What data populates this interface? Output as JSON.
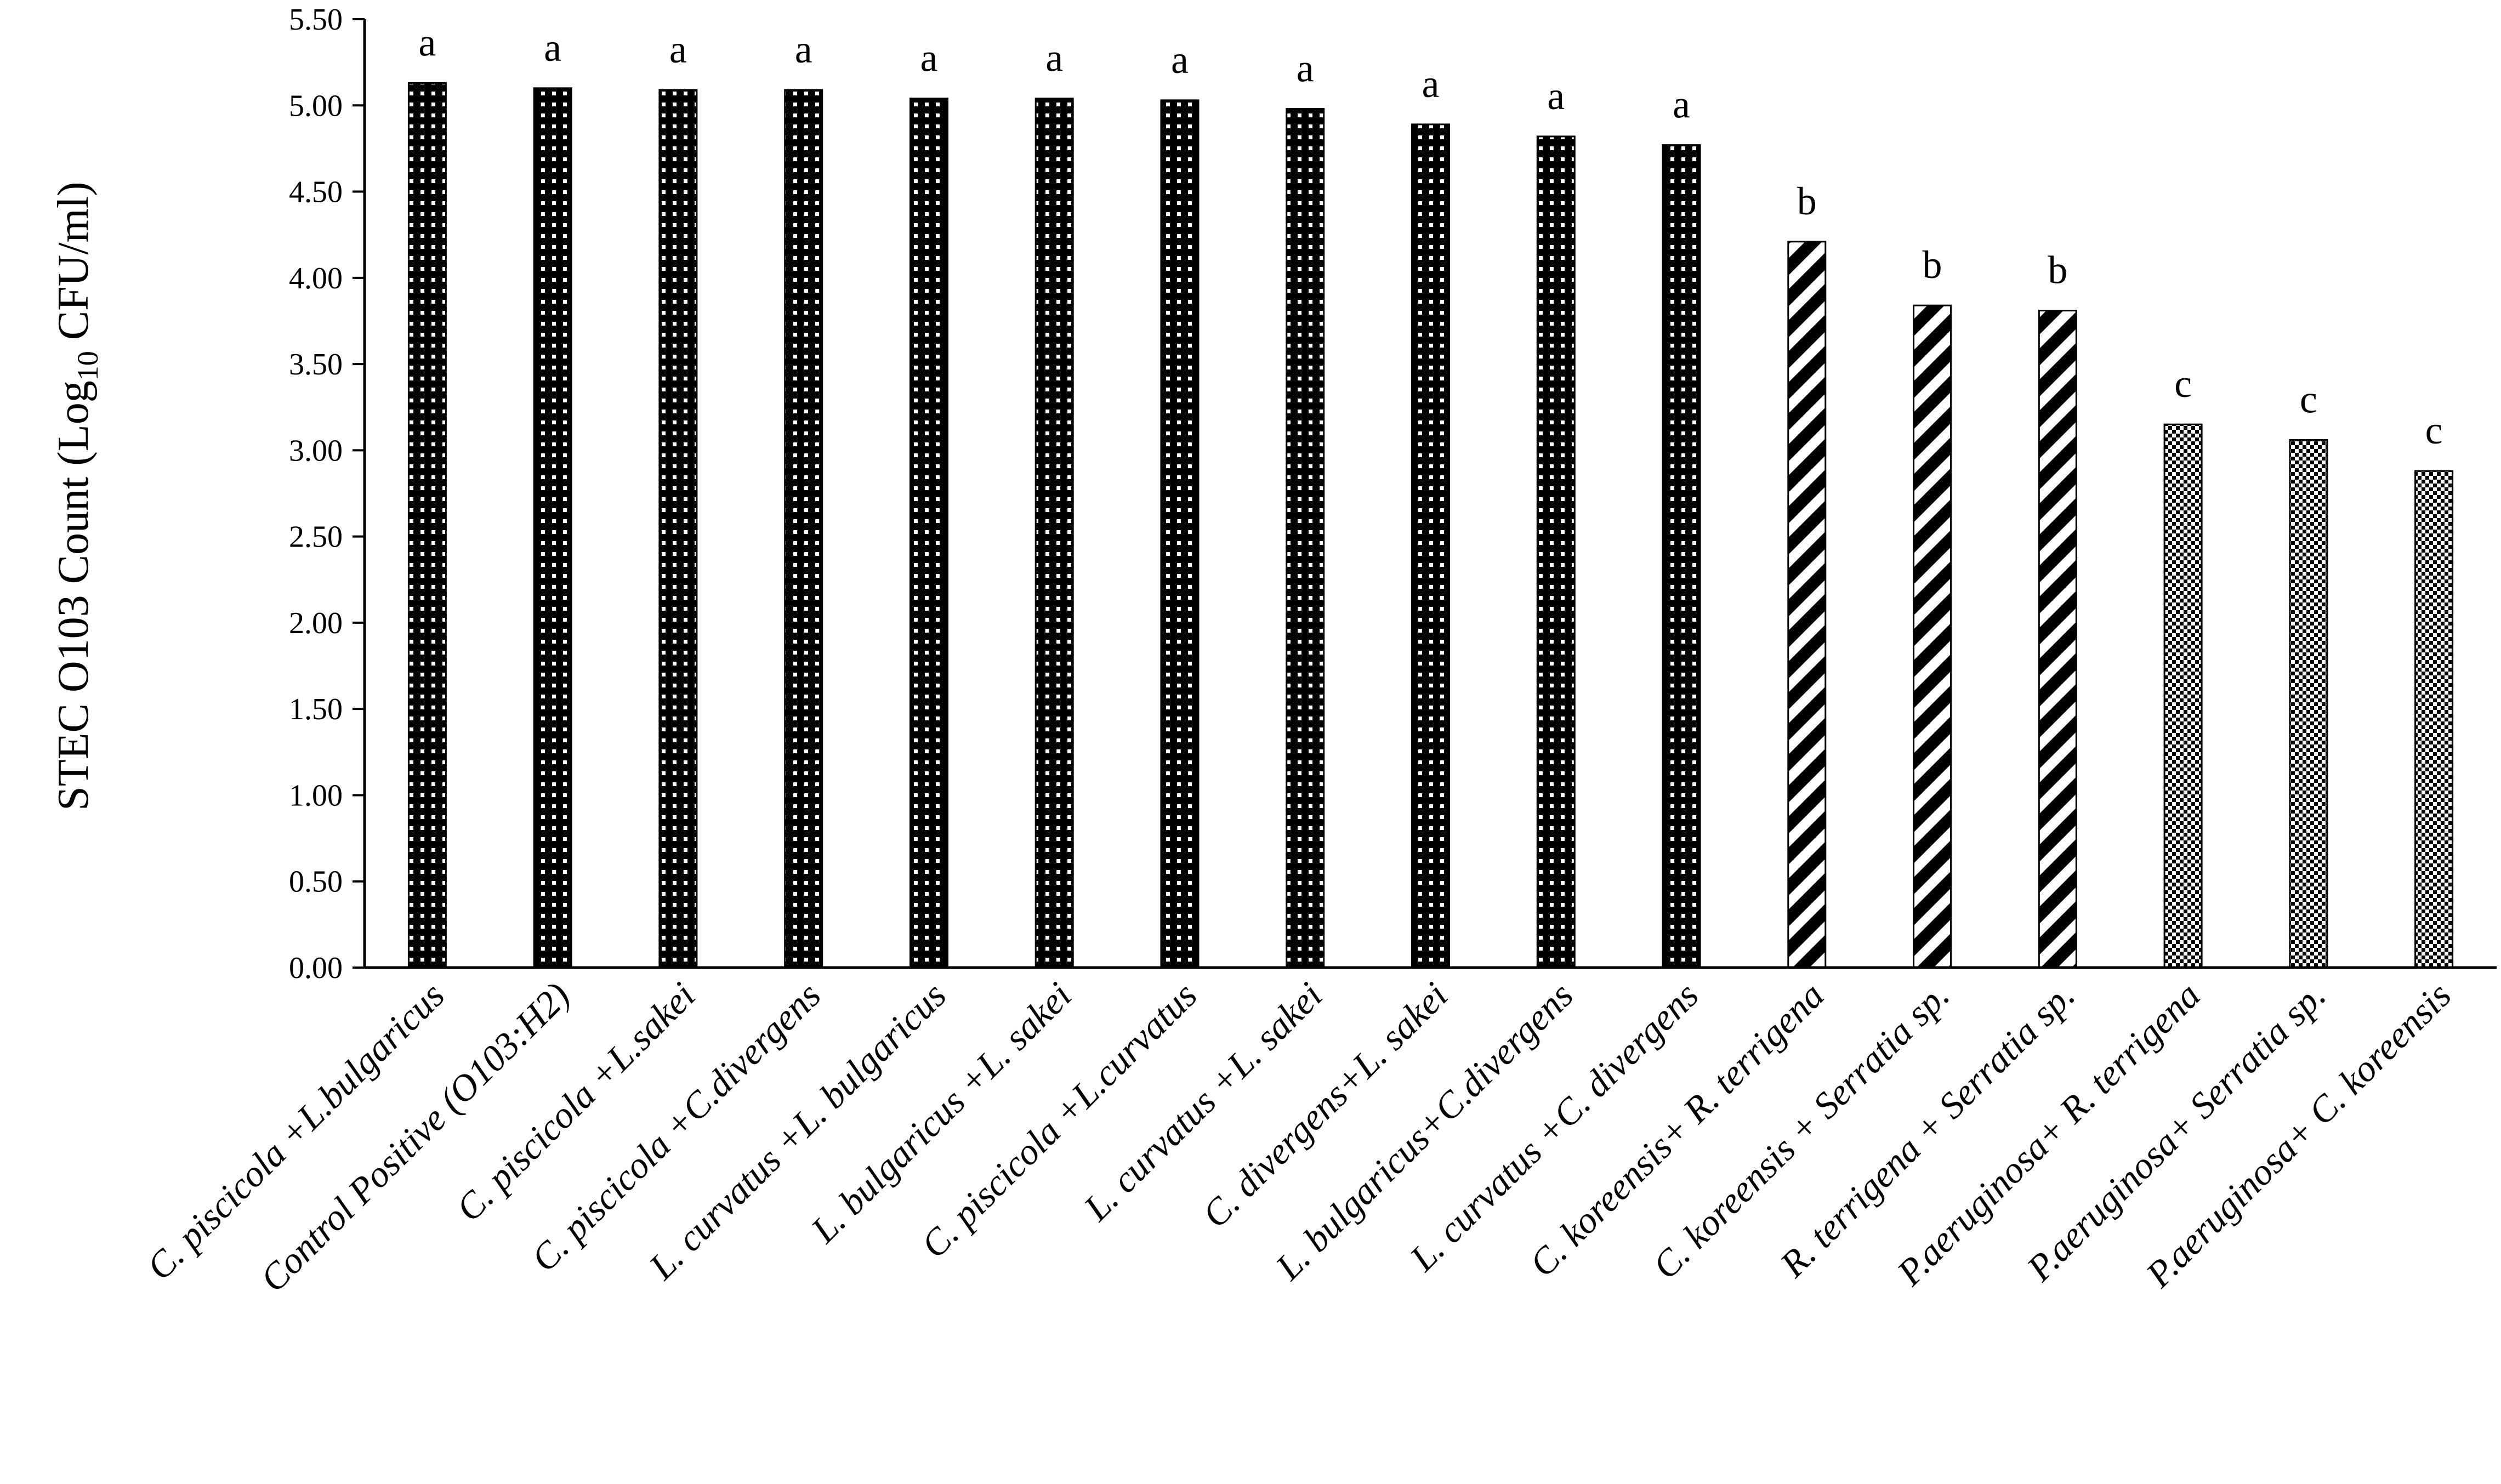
{
  "chart_data": {
    "type": "bar",
    "title": "",
    "xlabel": "",
    "ylabel": {
      "main": "STEC O103 Count (Log",
      "subscript": "10",
      "suffix": " CFU/ml)"
    },
    "ylim": [
      0,
      5.5
    ],
    "y_ticks": [
      "0.00",
      "0.50",
      "1.00",
      "1.50",
      "2.00",
      "2.50",
      "3.00",
      "3.50",
      "4.00",
      "4.50",
      "5.00",
      "5.50"
    ],
    "grid": false,
    "legend": "none",
    "categories": [
      "C. piscicola +L.bulgaricus",
      "Control Positive (O103:H2)",
      "C. piscicola +L.sakei",
      "C. piscicola +C.divergens",
      "L. curvatus +L. bulgaricus",
      "L. bulgaricus +L. sakei",
      "C. piscicola +L.curvatus",
      "L. curvatus +L. sakei",
      "C. divergens+L. sakei",
      "L. bulgaricus+C.divergens",
      "L. curvatus +C. divergens",
      "C. koreensis+ R. terrigena",
      "C. koreensis + Serratia sp.",
      "R. terrigena + Serratia sp.",
      "P.aeruginosa+ R. terrigena",
      "P.aeruginosa+ Serratia sp.",
      "P.aeruginosa+ C. koreensis"
    ],
    "values": [
      5.13,
      5.1,
      5.09,
      5.09,
      5.04,
      5.04,
      5.03,
      4.98,
      4.89,
      4.82,
      4.77,
      4.21,
      3.84,
      3.81,
      3.15,
      3.06,
      2.88
    ],
    "significance_letters": [
      "a",
      "a",
      "a",
      "a",
      "a",
      "a",
      "a",
      "a",
      "a",
      "a",
      "a",
      "b",
      "b",
      "b",
      "c",
      "c",
      "c"
    ],
    "patterns": [
      "dots",
      "dots",
      "dots",
      "dots",
      "dots",
      "dots",
      "dots",
      "dots",
      "dots",
      "dots",
      "dots",
      "stripes",
      "stripes",
      "stripes",
      "checker",
      "checker",
      "checker"
    ],
    "colors": {
      "bar_fill": "#000000",
      "pattern_light": "#ffffff",
      "axis": "#000000"
    }
  }
}
